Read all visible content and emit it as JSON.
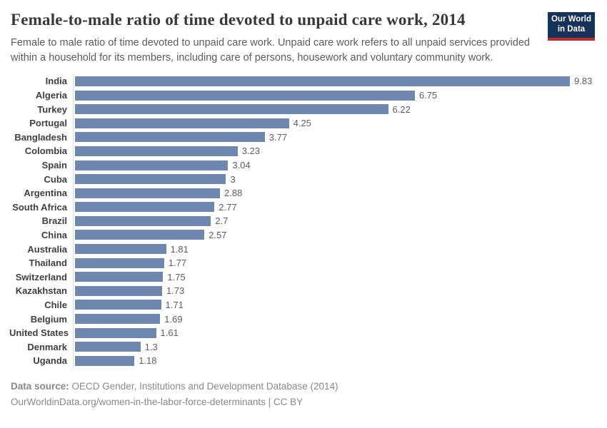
{
  "header": {
    "title": "Female-to-male ratio of time devoted to unpaid care work, 2014",
    "subtitle": "Female to male ratio of time devoted to unpaid care work. Unpaid care work refers to all unpaid services provided within a household for its members, including care of persons, housework and voluntary community work.",
    "logo": {
      "line1": "Our World",
      "line2": "in Data"
    }
  },
  "chart_data": {
    "type": "bar",
    "orientation": "horizontal",
    "title": "Female-to-male ratio of time devoted to unpaid care work, 2014",
    "categories": [
      "India",
      "Algeria",
      "Turkey",
      "Portugal",
      "Bangladesh",
      "Colombia",
      "Spain",
      "Cuba",
      "Argentina",
      "South Africa",
      "Brazil",
      "China",
      "Australia",
      "Thailand",
      "Switzerland",
      "Kazakhstan",
      "Chile",
      "Belgium",
      "United States",
      "Denmark",
      "Uganda"
    ],
    "values": [
      9.83,
      6.75,
      6.22,
      4.25,
      3.77,
      3.23,
      3.04,
      3,
      2.88,
      2.77,
      2.7,
      2.57,
      1.81,
      1.77,
      1.75,
      1.73,
      1.71,
      1.69,
      1.61,
      1.3,
      1.18
    ],
    "value_labels": [
      "9.83",
      "6.75",
      "6.22",
      "4.25",
      "3.77",
      "3.23",
      "3.04",
      "3",
      "2.88",
      "2.77",
      "2.7",
      "2.57",
      "1.81",
      "1.77",
      "1.75",
      "1.73",
      "1.71",
      "1.69",
      "1.61",
      "1.3",
      "1.18"
    ],
    "xlim": [
      0,
      9.83
    ],
    "grid": false,
    "legend": false,
    "bar_color": "#6d87ae",
    "axis_line_color": "#dadada"
  },
  "footer": {
    "source_label": "Data source:",
    "source_text": " OECD Gender, Institutions and Development Database (2014)",
    "link_text": "OurWorldinData.org/women-in-the-labor-force-determinants",
    "license_text": " | CC BY"
  }
}
